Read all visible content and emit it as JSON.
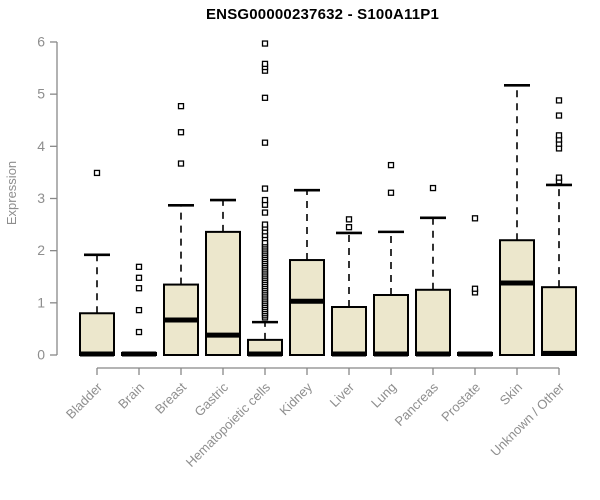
{
  "chart_data": {
    "type": "boxplot",
    "title": "ENSG00000237632 - S100A11P1",
    "xlabel": "",
    "ylabel": "Expression",
    "ylim": [
      0,
      6
    ],
    "yticks": [
      0,
      1,
      2,
      3,
      4,
      5,
      6
    ],
    "grid": false,
    "legend": false,
    "categories": [
      "Bladder",
      "Brain",
      "Breast",
      "Gastric",
      "Hematopoietic cells",
      "Kidney",
      "Liver",
      "Lung",
      "Pancreas",
      "Prostate",
      "Skin",
      "Unknown / Other"
    ],
    "series": [
      {
        "name": "Bladder",
        "whisker_low": 0,
        "q1": 0,
        "median": 0.02,
        "q3": 0.8,
        "whisker_high": 1.92,
        "outliers": [
          3.49
        ]
      },
      {
        "name": "Brain",
        "whisker_low": 0,
        "q1": 0,
        "median": 0.02,
        "q3": 0.04,
        "whisker_high": 0.04,
        "outliers": [
          0.44,
          0.86,
          1.28,
          1.48,
          1.69
        ]
      },
      {
        "name": "Breast",
        "whisker_low": 0,
        "q1": 0,
        "median": 0.67,
        "q3": 1.35,
        "whisker_high": 2.87,
        "outliers": [
          3.67,
          4.27,
          4.77
        ]
      },
      {
        "name": "Gastric",
        "whisker_low": 0,
        "q1": 0,
        "median": 0.38,
        "q3": 2.36,
        "whisker_high": 2.97,
        "outliers": []
      },
      {
        "name": "Hematopoietic cells",
        "whisker_low": 0,
        "q1": 0,
        "median": 0.02,
        "q3": 0.29,
        "whisker_high": 0.63,
        "outliers": [
          0.72,
          0.76,
          0.8,
          0.84,
          0.88,
          0.92,
          0.96,
          1.0,
          1.04,
          1.08,
          1.12,
          1.16,
          1.2,
          1.24,
          1.28,
          1.32,
          1.36,
          1.4,
          1.44,
          1.48,
          1.52,
          1.56,
          1.6,
          1.64,
          1.68,
          1.72,
          1.76,
          1.8,
          1.84,
          1.88,
          1.92,
          1.96,
          2.0,
          2.04,
          2.08,
          2.12,
          2.16,
          2.24,
          2.3,
          2.37,
          2.44,
          2.5,
          2.73,
          2.88,
          2.97,
          3.19,
          4.07,
          4.93,
          5.45,
          5.52,
          5.58,
          5.97
        ]
      },
      {
        "name": "Kidney",
        "whisker_low": 0,
        "q1": 0,
        "median": 1.03,
        "q3": 1.82,
        "whisker_high": 3.16,
        "outliers": []
      },
      {
        "name": "Liver",
        "whisker_low": 0,
        "q1": 0,
        "median": 0.02,
        "q3": 0.92,
        "whisker_high": 2.34,
        "outliers": [
          2.45,
          2.6
        ]
      },
      {
        "name": "Lung",
        "whisker_low": 0,
        "q1": 0,
        "median": 0.02,
        "q3": 1.15,
        "whisker_high": 2.36,
        "outliers": [
          3.11,
          3.64
        ]
      },
      {
        "name": "Pancreas",
        "whisker_low": 0,
        "q1": 0,
        "median": 0.02,
        "q3": 1.25,
        "whisker_high": 2.63,
        "outliers": [
          3.2
        ]
      },
      {
        "name": "Prostate",
        "whisker_low": 0,
        "q1": 0,
        "median": 0.02,
        "q3": 0.04,
        "whisker_high": 0.04,
        "outliers": [
          1.2,
          1.27,
          2.62
        ]
      },
      {
        "name": "Skin",
        "whisker_low": 0,
        "q1": 0,
        "median": 1.38,
        "q3": 2.2,
        "whisker_high": 5.17,
        "outliers": []
      },
      {
        "name": "Unknown / Other",
        "whisker_low": 0,
        "q1": 0,
        "median": 0.03,
        "q3": 1.3,
        "whisker_high": 3.26,
        "outliers": [
          3.33,
          3.4,
          3.96,
          4.05,
          4.13,
          4.21,
          4.59,
          4.88
        ]
      }
    ],
    "colors": {
      "box_fill": "#ECE7CC",
      "box_border": "#000000",
      "median": "#000000",
      "whisker": "#000000",
      "outlier_border": "#000000",
      "axis_line": "#888888",
      "axis_text": "#8e8e8e",
      "title_text": "#000000",
      "background": "#ffffff"
    }
  }
}
